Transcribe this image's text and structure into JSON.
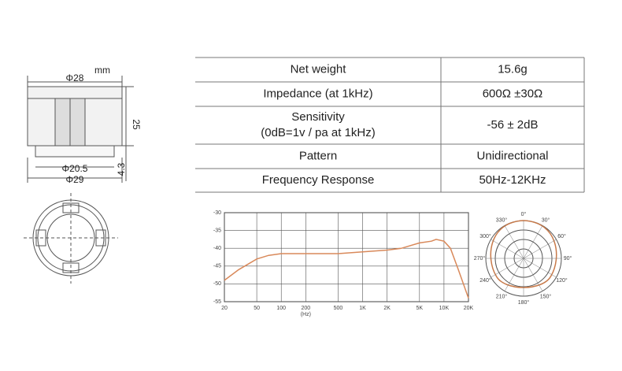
{
  "drawing": {
    "unit": "mm",
    "top_diameter": "Φ28",
    "height": "25",
    "inner_diameter": "Φ20.5",
    "base_height": "4.3",
    "bottom_diameter": "Φ29"
  },
  "table": {
    "rows": [
      [
        "Net weight",
        "15.6g"
      ],
      [
        "Impedance (at 1kHz)",
        "600Ω ±30Ω"
      ],
      [
        [
          "Sensitivity",
          "(0dB=1v / pa at 1kHz)"
        ],
        "-56 ± 2dB"
      ],
      [
        "Pattern",
        "Unidirectional"
      ],
      [
        "Frequency Response",
        "50Hz-12KHz"
      ]
    ]
  },
  "chart_data": {
    "type": "line",
    "x_label": "(Hz)",
    "log_x": true,
    "grid": true,
    "x": [
      20,
      30,
      50,
      70,
      100,
      200,
      500,
      1000,
      2000,
      3000,
      5000,
      7000,
      8000,
      10000,
      12000,
      15000,
      20000
    ],
    "series": [
      {
        "color": "#d9895a",
        "values": [
          -49,
          -46,
          -43,
          -42,
          -41.5,
          -41.5,
          -41.5,
          -41,
          -40.5,
          -40,
          -38.5,
          -38,
          -37.5,
          -38,
          -40,
          -46,
          -54
        ]
      }
    ],
    "xlim": [
      20,
      20000
    ],
    "xticks": [
      20,
      50,
      100,
      200,
      500,
      {
        "value": 1000,
        "label": "1K"
      },
      {
        "value": 2000,
        "label": "2K"
      },
      {
        "value": 5000,
        "label": "5K"
      },
      {
        "value": 10000,
        "label": "10K"
      },
      {
        "value": 20000,
        "label": "20K"
      }
    ],
    "ylim": [
      -55,
      -30
    ],
    "yticks": [
      -30,
      -35,
      -40,
      -45,
      -50,
      -55
    ]
  },
  "polar": {
    "angle_labels": [
      "0°",
      "30°",
      "60°",
      "90°",
      "120°",
      "150°",
      "180°",
      "210°",
      "240°",
      "270°",
      "300°",
      "330°"
    ]
  }
}
